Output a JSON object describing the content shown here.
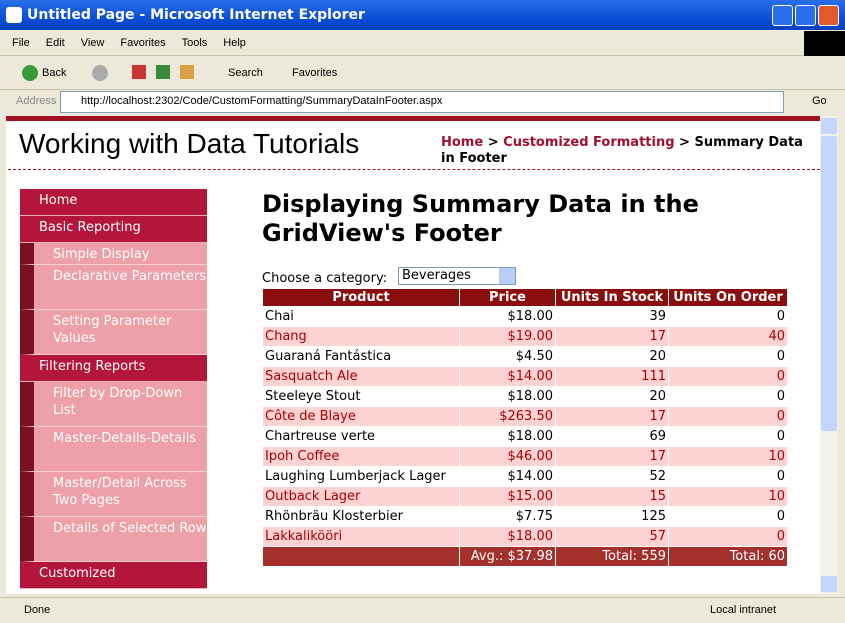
{
  "window": {
    "title": "Untitled Page - Microsoft Internet Explorer"
  },
  "menu": [
    "File",
    "Edit",
    "View",
    "Favorites",
    "Tools",
    "Help"
  ],
  "toolbar": {
    "back": "Back",
    "search": "Search",
    "favorites": "Favorites"
  },
  "address": {
    "label": "Address",
    "url": "http://localhost:2302/Code/CustomFormatting/SummaryDataInFooter.aspx",
    "go": "Go"
  },
  "header": {
    "title": "Working with Data Tutorials"
  },
  "breadcrumb": {
    "links": [
      "Home",
      "Customized Formatting"
    ],
    "separator": ">",
    "current": "Summary Data in Footer"
  },
  "nav": [
    {
      "title": "Home",
      "items": []
    },
    {
      "title": "Basic Reporting",
      "items": [
        "Simple Display",
        "Declarative Parameters",
        "Setting Parameter Values"
      ]
    },
    {
      "title": "Filtering Reports",
      "items": [
        "Filter by Drop-Down List",
        "Master-Details-Details",
        "Master/Detail Across Two Pages",
        "Details of Selected Row"
      ]
    },
    {
      "title": "Customized",
      "items": []
    }
  ],
  "main": {
    "heading": "Displaying Summary Data in the GridView's Footer",
    "category_label": "Choose a category:",
    "category_selected": "Beverages"
  },
  "table": {
    "headers": [
      "Product",
      "Price",
      "Units In Stock",
      "Units On Order"
    ],
    "rows": [
      [
        "Chai",
        "$18.00",
        39,
        0
      ],
      [
        "Chang",
        "$19.00",
        17,
        40
      ],
      [
        "Guaraná Fantástica",
        "$4.50",
        20,
        0
      ],
      [
        "Sasquatch Ale",
        "$14.00",
        111,
        0
      ],
      [
        "Steeleye Stout",
        "$18.00",
        20,
        0
      ],
      [
        "Côte de Blaye",
        "$263.50",
        17,
        0
      ],
      [
        "Chartreuse verte",
        "$18.00",
        69,
        0
      ],
      [
        "Ipoh Coffee",
        "$46.00",
        17,
        10
      ],
      [
        "Laughing Lumberjack Lager",
        "$14.00",
        52,
        0
      ],
      [
        "Outback Lager",
        "$15.00",
        15,
        10
      ],
      [
        "Rhönbräu Klosterbier",
        "$7.75",
        125,
        0
      ],
      [
        "Lakkalikööri",
        "$18.00",
        57,
        0
      ]
    ],
    "footer": [
      "Avg.: $37.98",
      "Total: 559",
      "Total: 60"
    ]
  },
  "status": {
    "text": "Done",
    "zone": "Local intranet"
  }
}
